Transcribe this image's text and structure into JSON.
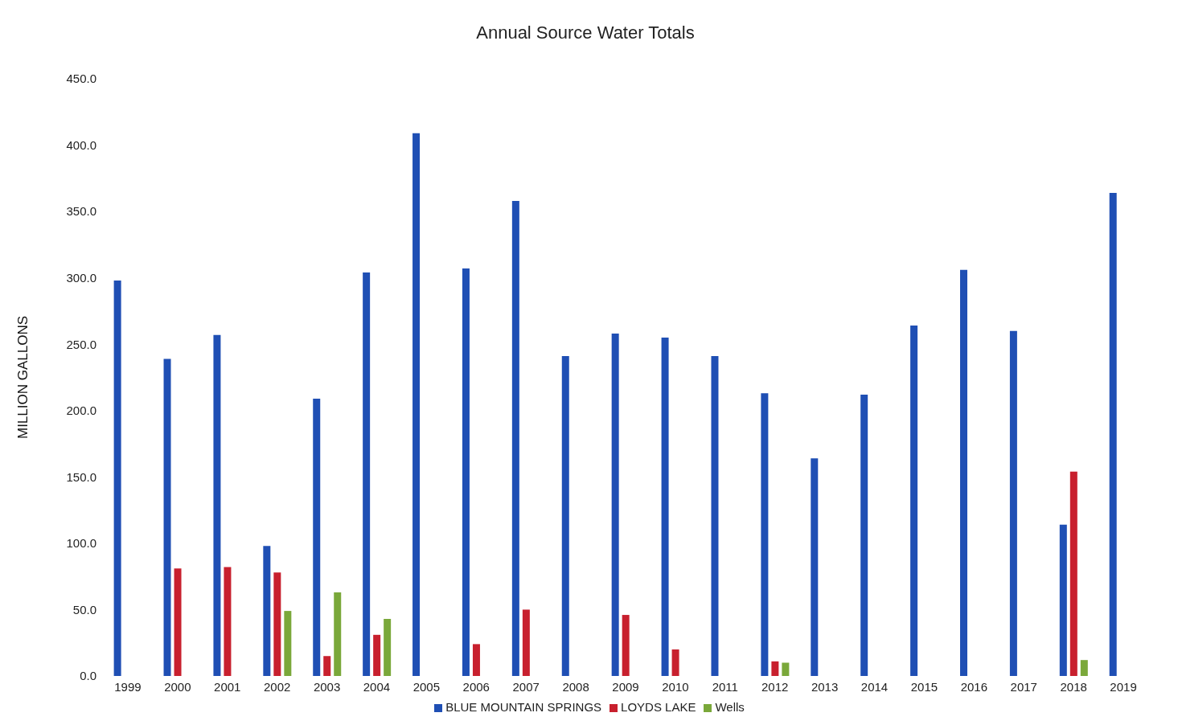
{
  "chart_data": {
    "type": "bar",
    "title": "Annual Source Water Totals",
    "ylabel": "MILLION GALLONS",
    "categories": [
      "1999",
      "2000",
      "2001",
      "2002",
      "2003",
      "2004",
      "2005",
      "2006",
      "2007",
      "2008",
      "2009",
      "2010",
      "2011",
      "2012",
      "2013",
      "2014",
      "2015",
      "2016",
      "2017",
      "2018",
      "2019"
    ],
    "series": [
      {
        "name": "BLUE MOUNTAIN SPRINGS",
        "color": "#1f4fb4",
        "values": [
          298,
          239,
          257,
          98,
          209,
          304,
          409,
          307,
          358,
          241,
          258,
          255,
          241,
          213,
          164,
          212,
          264,
          306,
          260,
          114,
          364
        ]
      },
      {
        "name": "LOYDS LAKE",
        "color": "#c8202e",
        "values": [
          null,
          81,
          82,
          78,
          15,
          31,
          null,
          24,
          50,
          null,
          46,
          20,
          null,
          11,
          null,
          null,
          null,
          null,
          null,
          154,
          null
        ]
      },
      {
        "name": "Wells",
        "color": "#7aa83a",
        "values": [
          null,
          null,
          null,
          49,
          63,
          43,
          null,
          null,
          null,
          null,
          null,
          null,
          null,
          10,
          null,
          null,
          null,
          null,
          null,
          12,
          null
        ]
      }
    ],
    "ylim": [
      0,
      450
    ],
    "yticks": [
      {
        "value": 0,
        "label": "0.0"
      },
      {
        "value": 50,
        "label": "50.0"
      },
      {
        "value": 100,
        "label": "100.0"
      },
      {
        "value": 150,
        "label": "150.0"
      },
      {
        "value": 200,
        "label": "200.0"
      },
      {
        "value": 250,
        "label": "250.0"
      },
      {
        "value": 300,
        "label": "300.0"
      },
      {
        "value": 350,
        "label": "350.0"
      },
      {
        "value": 400,
        "label": "400.0"
      },
      {
        "value": 450,
        "label": "450.0"
      }
    ],
    "legend": "bottom"
  }
}
